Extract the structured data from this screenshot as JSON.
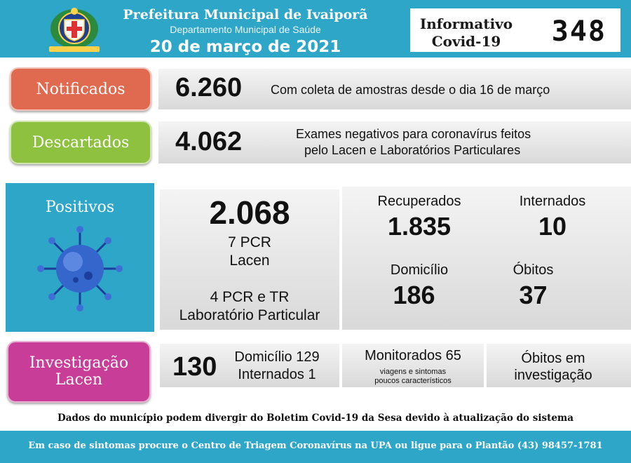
{
  "header": {
    "title": "Prefeitura Municipal de Ivaiporã",
    "subtitle": "Departamento Municipal de Saúde",
    "date": "20 de março de 2021",
    "informativo_line1": "Informativo",
    "informativo_line2": "Covid-19",
    "bulletin_number": "348",
    "crest_icon": "municipal-crest-icon"
  },
  "notificados": {
    "label": "Notificados",
    "value": "6.260",
    "description": "Com coleta de amostras desde o dia 16 de março"
  },
  "descartados": {
    "label": "Descartados",
    "value": "4.062",
    "description_line1": "Exames negativos para coronavírus feitos",
    "description_line2": "pelo Lacen e Laboratórios Particulares"
  },
  "positivos": {
    "label": "Positivos",
    "virus_icon": "coronavirus-icon",
    "total": "2.068",
    "lacen_count": "7 PCR",
    "lacen_label": "Lacen",
    "particular_count": "4 PCR e TR",
    "particular_label": "Laboratório Particular",
    "recuperados_label": "Recuperados",
    "recuperados_value": "1.835",
    "internados_label": "Internados",
    "internados_value": "10",
    "domicilio_label": "Domicílio",
    "domicilio_value": "186",
    "obitos_label": "Óbitos",
    "obitos_value": "37"
  },
  "investigacao": {
    "label_line1": "Investigação",
    "label_line2": "Lacen",
    "total": "130",
    "domicilio": "Domicílio 129",
    "internados": "Internados 1",
    "monitorados": "Monitorados 65",
    "monitorados_note1": "viagens e sintomas",
    "monitorados_note2": "poucos característicos",
    "obitos_line1": "Óbitos em",
    "obitos_line2": "investigação"
  },
  "note": "Dados do município podem divergir do Boletim Covid-19 da Sesa devido à atualização do sistema",
  "footer": "Em caso de sintomas procure o Centro de Triagem Coronavírus na UPA ou ligue para o Plantão (43) 98457-1781",
  "colors": {
    "header_blue": "#2ea6c7",
    "notificados": "#e06a50",
    "descartados": "#8ec13f",
    "investigacao": "#c83d98"
  }
}
